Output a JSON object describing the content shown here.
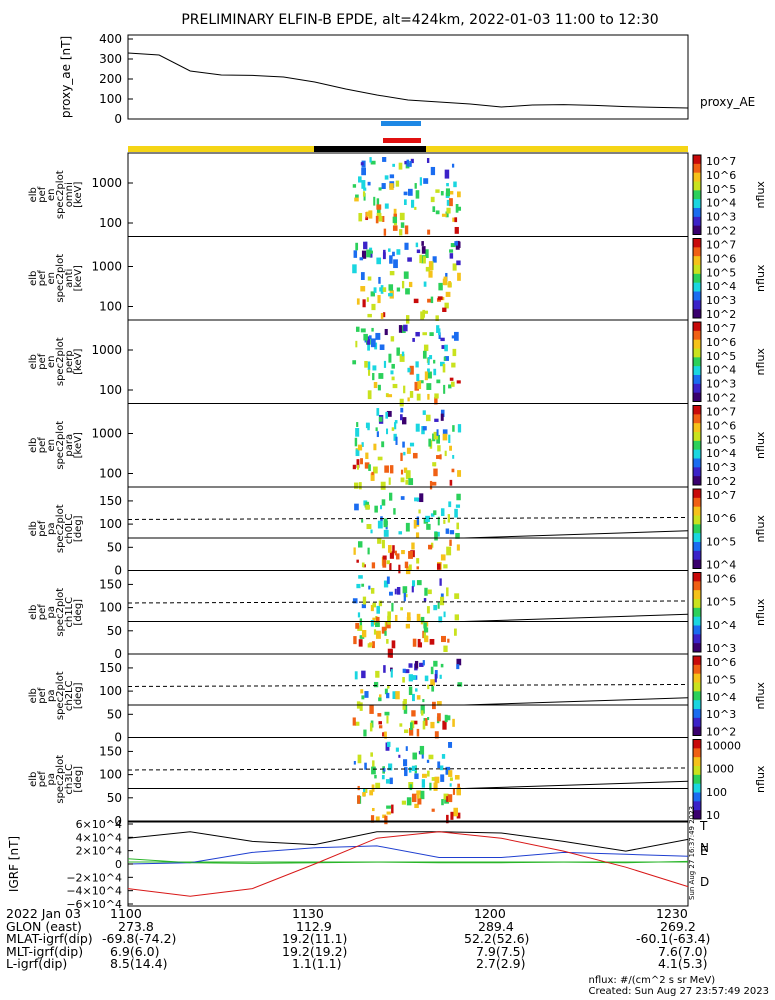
{
  "title": "PRELIMINARY ELFIN-B EPDE, alt=424km, 2022-01-03 11:00 to 12:30",
  "ae_panel": {
    "ylabel": "proxy_ae [nT]",
    "yticks": [
      "400",
      "300",
      "200",
      "100",
      "0"
    ],
    "series_label": "proxy_AE"
  },
  "spectrogram_panels": [
    {
      "ylabel": [
        "elb",
        "pef",
        "en",
        "spec2plot",
        "omni",
        "[keV]"
      ],
      "yticks": [
        "1000",
        "100"
      ],
      "cbar_ticks": [
        "10^7",
        "10^6",
        "10^5",
        "10^4",
        "10^3",
        "10^2"
      ],
      "cbar_label": "nflux"
    },
    {
      "ylabel": [
        "elb",
        "pef",
        "en",
        "spec2plot",
        "anti",
        "[keV]"
      ],
      "yticks": [
        "1000",
        "100"
      ],
      "cbar_ticks": [
        "10^7",
        "10^6",
        "10^5",
        "10^4",
        "10^3",
        "10^2"
      ],
      "cbar_label": "nflux"
    },
    {
      "ylabel": [
        "elb",
        "pef",
        "en",
        "spec2plot",
        "perp",
        "[keV]"
      ],
      "yticks": [
        "1000",
        "100"
      ],
      "cbar_ticks": [
        "10^7",
        "10^6",
        "10^5",
        "10^4",
        "10^3",
        "10^2"
      ],
      "cbar_label": "nflux"
    },
    {
      "ylabel": [
        "elb",
        "pef",
        "en",
        "spec2plot",
        "para",
        "[keV]"
      ],
      "yticks": [
        "1000",
        "100"
      ],
      "cbar_ticks": [
        "10^7",
        "10^6",
        "10^5",
        "10^4",
        "10^3",
        "10^2"
      ],
      "cbar_label": "nflux"
    },
    {
      "ylabel": [
        "elb",
        "pef",
        "pa",
        "spec2plot",
        "ch0LC",
        "[deg]"
      ],
      "yticks": [
        "150",
        "100",
        "50",
        "0"
      ],
      "cbar_ticks": [
        "10^7",
        "10^6",
        "10^5",
        "10^4"
      ],
      "cbar_label": "nflux"
    },
    {
      "ylabel": [
        "elb",
        "pef",
        "pa",
        "spec2plot",
        "ch1LC",
        "[deg]"
      ],
      "yticks": [
        "150",
        "100",
        "50",
        "0"
      ],
      "cbar_ticks": [
        "10^6",
        "10^5",
        "10^4",
        "10^3"
      ],
      "cbar_label": "nflux"
    },
    {
      "ylabel": [
        "elb",
        "pef",
        "pa",
        "spec2plot",
        "ch2LC",
        "[deg]"
      ],
      "yticks": [
        "150",
        "100",
        "50",
        "0"
      ],
      "cbar_ticks": [
        "10^6",
        "10^5",
        "10^4",
        "10^3",
        "10^2"
      ],
      "cbar_label": "nflux"
    },
    {
      "ylabel": [
        "elb",
        "pef",
        "pa",
        "spec2plot",
        "ch3LC",
        "[deg]"
      ],
      "yticks": [
        "150",
        "100",
        "50",
        "0"
      ],
      "cbar_ticks": [
        "10000",
        "1000",
        "100",
        "10"
      ],
      "cbar_label": "nflux"
    }
  ],
  "igrf_panel": {
    "ylabel": "IGRF [nT]",
    "yticks": [
      "6×10^4",
      "4×10^4",
      "2×10^4",
      "0",
      "−2×10^4",
      "−4×10^4",
      "−6×10^4"
    ],
    "legend": [
      {
        "label": "T",
        "color": "#000000"
      },
      {
        "label": "N",
        "color": "#1f3fd0"
      },
      {
        "label": "E",
        "color": "#2ab52a"
      },
      {
        "label": "D",
        "color": "#d81818"
      }
    ],
    "side_stamp": "Sun Aug 27 16:37:49 2023"
  },
  "stats": {
    "date": "2022 Jan 03",
    "rows": [
      {
        "label": "GLON (east)",
        "values": [
          "273.8",
          "112.9",
          "289.4",
          "269.2"
        ]
      },
      {
        "label": "MLAT-igrf(dip)",
        "values": [
          "-69.8(-74.2)",
          "19.2(11.1)",
          "52.2(52.6)",
          "-60.1(-63.4)"
        ]
      },
      {
        "label": "MLT-igrf(dip)",
        "values": [
          "6.9(6.0)",
          "19.2(19.2)",
          "7.9(7.5)",
          "7.6(7.0)"
        ]
      },
      {
        "label": "L-igrf(dip)",
        "values": [
          "8.5(14.4)",
          "1.1(1.1)",
          "2.7(2.9)",
          "4.1(5.3)"
        ]
      }
    ],
    "time_ticks": [
      "1100",
      "1130",
      "1200",
      "1230"
    ]
  },
  "footer": {
    "units": "nflux: #/(cm^2 s sr MeV)",
    "created": "Created: Sun Aug 27 23:57:49 2023"
  },
  "chart_data": {
    "type": "line",
    "title": "PRELIMINARY ELFIN-B EPDE, alt=424km, 2022-01-03 11:00 to 12:30",
    "x_unit": "minutes after 11:00 UT",
    "proxy_ae": {
      "ylabel": "proxy_ae [nT]",
      "ylim": [
        0,
        420
      ],
      "x": [
        0,
        5,
        10,
        15,
        20,
        25,
        30,
        35,
        40,
        45,
        50,
        55,
        60,
        65,
        70,
        75,
        80,
        85,
        90
      ],
      "values": [
        330,
        320,
        240,
        220,
        218,
        210,
        185,
        150,
        120,
        95,
        85,
        75,
        60,
        70,
        72,
        68,
        62,
        58,
        55
      ]
    },
    "igrf": {
      "ylabel": "IGRF [nT]",
      "ylim": [
        -65000,
        65000
      ],
      "series": [
        {
          "name": "T",
          "x": [
            0,
            10,
            20,
            30,
            40,
            50,
            60,
            70,
            80,
            90
          ],
          "values": [
            40000,
            50000,
            35000,
            30000,
            50000,
            50000,
            48000,
            35000,
            20000,
            38000
          ]
        },
        {
          "name": "N",
          "x": [
            0,
            10,
            20,
            30,
            40,
            50,
            60,
            70,
            80,
            90
          ],
          "values": [
            0,
            2000,
            18000,
            25000,
            28000,
            10000,
            10000,
            18000,
            15000,
            12000
          ]
        },
        {
          "name": "E",
          "x": [
            0,
            10,
            20,
            30,
            40,
            50,
            60,
            70,
            80,
            90
          ],
          "values": [
            8000,
            2000,
            1000,
            2000,
            3000,
            2000,
            2000,
            3000,
            2000,
            4000
          ]
        },
        {
          "name": "D",
          "x": [
            0,
            10,
            20,
            30,
            40,
            50,
            60,
            70,
            80,
            90
          ],
          "values": [
            -38000,
            -50000,
            -38000,
            0,
            40000,
            50000,
            40000,
            20000,
            -5000,
            -35000
          ]
        }
      ]
    },
    "science_zone_minutes": [
      36,
      54
    ],
    "pa_lines_deg": {
      "dashed": 110,
      "solid_upper": 90,
      "solid_lower": 70
    }
  }
}
